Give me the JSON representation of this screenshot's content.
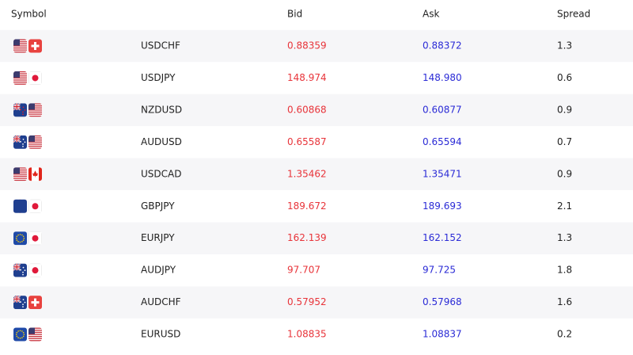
{
  "table": {
    "header": [
      "Symbol",
      "Bid",
      "Ask",
      "Spread"
    ],
    "rows": [
      [
        "USDCHF",
        "0.88359",
        "0.88372",
        "1.3"
      ],
      [
        "USDJPY",
        "148.974",
        "148.980",
        "0.6"
      ],
      [
        "NZDUSD",
        "0.60868",
        "0.60877",
        "0.9"
      ],
      [
        "AUDUSD",
        "0.65587",
        "0.65594",
        "0.7"
      ],
      [
        "USDCAD",
        "1.35462",
        "1.35471",
        "0.9"
      ],
      [
        "GBPJPY",
        "189.672",
        "189.693",
        "2.1"
      ],
      [
        "EURJPY",
        "162.139",
        "162.152",
        "1.3"
      ],
      [
        "AUDJPY",
        "97.707",
        "97.725",
        "1.8"
      ],
      [
        "AUDCHF",
        "0.57952",
        "0.57968",
        "1.6"
      ],
      [
        "EURUSD",
        "1.08835",
        "1.08837",
        "0.2"
      ]
    ]
  }
}
